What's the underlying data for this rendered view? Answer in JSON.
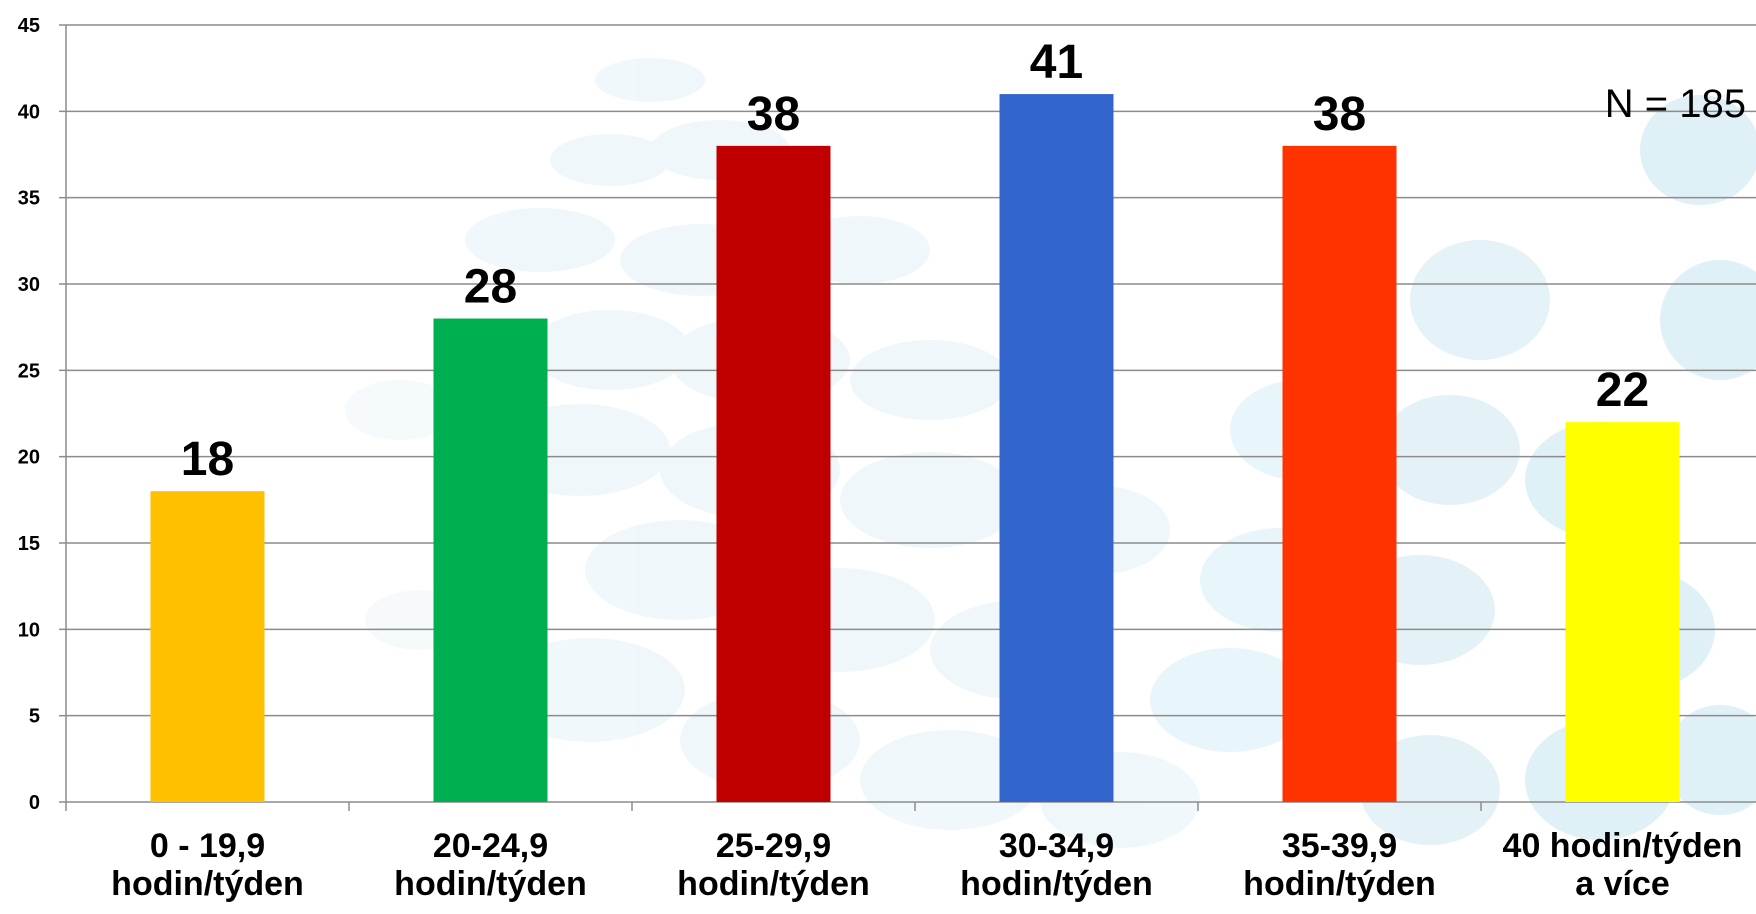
{
  "chart_data": {
    "type": "bar",
    "title": "",
    "xlabel": "",
    "ylabel": "",
    "categories": [
      [
        "0 - 19,9",
        "hodin/týden"
      ],
      [
        "20-24,9",
        "hodin/týden"
      ],
      [
        "25-29,9",
        "hodin/týden"
      ],
      [
        "30-34,9",
        "hodin/týden"
      ],
      [
        "35-39,9",
        "hodin/týden"
      ],
      [
        "40 hodin/týden",
        "a více"
      ]
    ],
    "values": [
      18,
      28,
      38,
      41,
      38,
      22
    ],
    "data_labels": [
      "18",
      "28",
      "38",
      "41",
      "38",
      "22"
    ],
    "colors": [
      "#FFC000",
      "#00B050",
      "#C00000",
      "#3366CC",
      "#FF3300",
      "#FFFF00"
    ],
    "ylim": [
      0,
      45
    ],
    "yticks": [
      0,
      5,
      10,
      15,
      20,
      25,
      30,
      35,
      40,
      45
    ],
    "grid": true,
    "legend": "none",
    "annotation": "N = 185"
  }
}
